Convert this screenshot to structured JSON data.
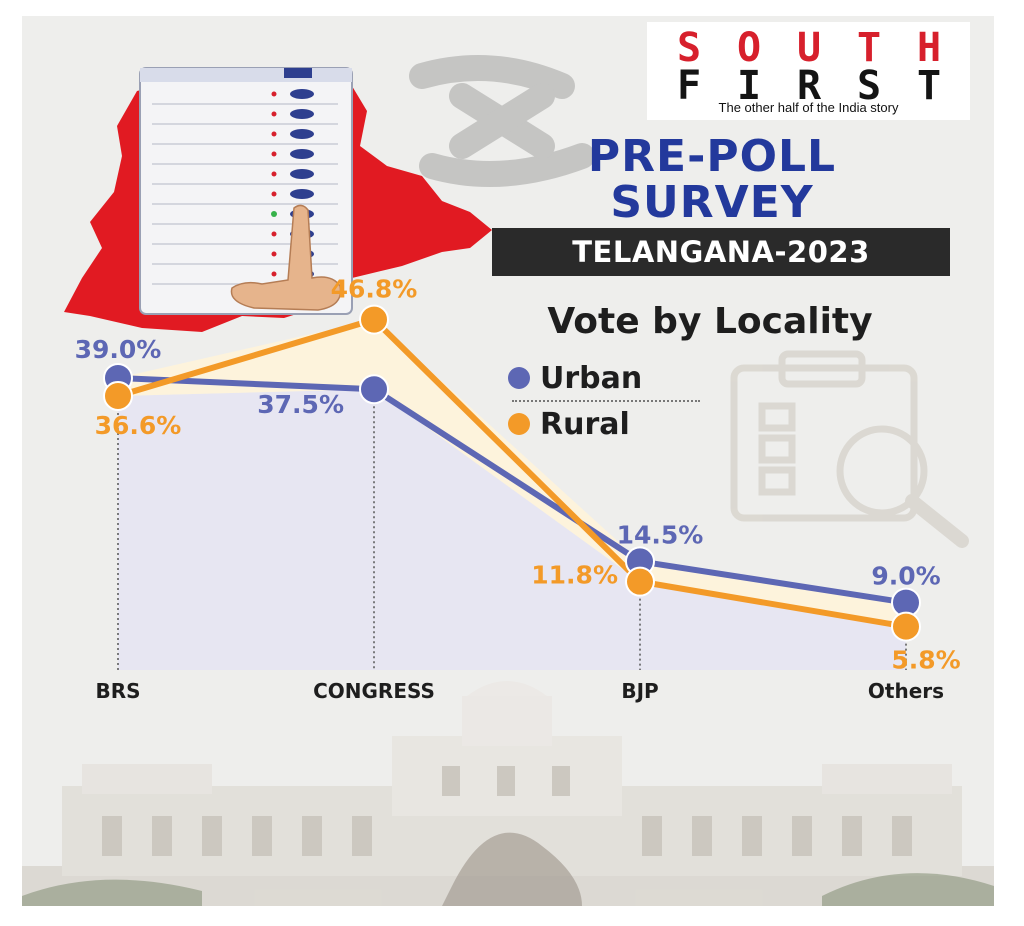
{
  "brand": {
    "letters_row1": [
      "S",
      "O",
      "U",
      "T",
      "H"
    ],
    "letters_row2": [
      "F",
      "I",
      "R",
      "S",
      "T"
    ],
    "tagline": "The other half of the India story"
  },
  "title_line1": "PRE-POLL",
  "title_line2": "SURVEY",
  "banner": "TELANGANA-2023",
  "colors": {
    "urban": "#5d67b4",
    "rural": "#f39a28",
    "title": "#23399c",
    "map_red": "#e11a22",
    "logo_red": "#d7202c",
    "lower_fill": "#e7e6f2",
    "band_fill": "#fdf3dc"
  },
  "chart_data": {
    "type": "line",
    "title": "Vote by Locality",
    "categories": [
      "BRS",
      "CONGRESS",
      "BJP",
      "Others"
    ],
    "series": [
      {
        "name": "Urban",
        "values": [
          39.0,
          37.5,
          14.5,
          9.0
        ],
        "labels": [
          "39.0%",
          "37.5%",
          "14.5%",
          "9.0%"
        ]
      },
      {
        "name": "Rural",
        "values": [
          36.6,
          46.8,
          11.8,
          5.8
        ],
        "labels": [
          "36.6%",
          "46.8%",
          "11.8%",
          "5.8%"
        ]
      }
    ],
    "ylim": [
      0,
      50
    ],
    "grid": false,
    "legend_position": "top-right"
  }
}
